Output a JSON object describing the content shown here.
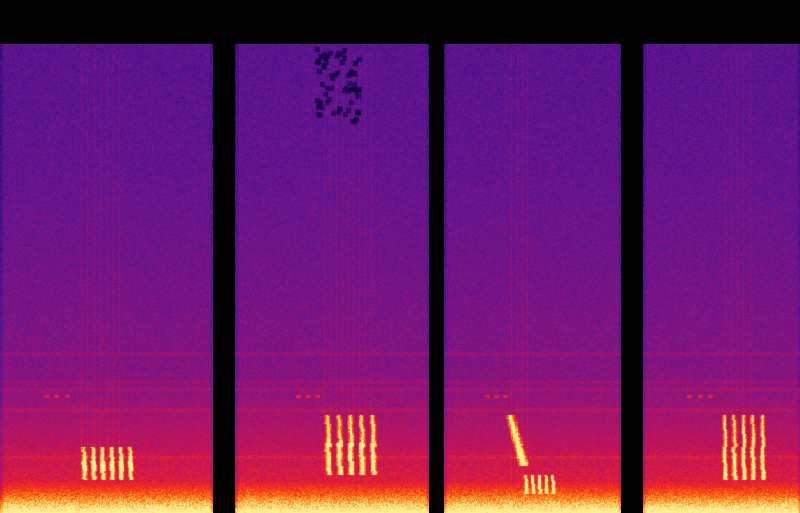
{
  "image": {
    "description_colors": {
      "background": "#000000",
      "low": "#5a1a9a",
      "mid": "#c0146e",
      "high": "#ff3a10",
      "peak": "#ffe27a"
    },
    "panels": [
      {
        "label": "",
        "calls": [
          {
            "t0": 0.38,
            "t1": 0.64,
            "f_low": 0.86,
            "f_high": 0.91,
            "pulses": 6,
            "kind": "stack"
          },
          {
            "t0": 0.38,
            "t1": 0.64,
            "f_low": 0.89,
            "f_high": 0.93,
            "pulses": 6,
            "kind": "stack"
          },
          {
            "t0": 0.19,
            "t1": 0.34,
            "f_low": 0.74,
            "f_high": 0.76,
            "pulses": 3,
            "kind": "dots"
          }
        ],
        "vertical_lines": [
          0.38,
          0.41,
          0.44,
          0.47,
          0.5,
          0.53,
          0.56
        ]
      },
      {
        "label": "",
        "calls": [
          {
            "t0": 0.46,
            "t1": 0.75,
            "f_low": 0.79,
            "f_high": 0.86,
            "pulses": 5,
            "kind": "stack"
          },
          {
            "t0": 0.46,
            "t1": 0.75,
            "f_low": 0.85,
            "f_high": 0.92,
            "pulses": 5,
            "kind": "stack"
          },
          {
            "t0": 0.3,
            "t1": 0.45,
            "f_low": 0.74,
            "f_high": 0.76,
            "pulses": 3,
            "kind": "dots"
          }
        ],
        "vertical_lines": [
          0.46,
          0.49,
          0.52,
          0.55,
          0.58,
          0.61,
          0.64,
          0.67,
          0.7
        ],
        "dark_spots": true
      },
      {
        "label": "",
        "calls": [
          {
            "t0": 0.37,
            "t1": 0.45,
            "f_low": 0.79,
            "f_high": 0.9,
            "pulses": 1,
            "kind": "sweep"
          },
          {
            "t0": 0.45,
            "t1": 0.64,
            "f_low": 0.92,
            "f_high": 0.96,
            "pulses": 5,
            "kind": "stack"
          },
          {
            "t0": 0.22,
            "t1": 0.37,
            "f_low": 0.74,
            "f_high": 0.76,
            "pulses": 3,
            "kind": "dots"
          }
        ],
        "vertical_lines": [
          0.38,
          0.41,
          0.44,
          0.47
        ]
      },
      {
        "label": "",
        "calls": [
          {
            "t0": 0.5,
            "t1": 0.8,
            "f_low": 0.79,
            "f_high": 0.86,
            "pulses": 5,
            "kind": "stack"
          },
          {
            "t0": 0.5,
            "t1": 0.8,
            "f_low": 0.86,
            "f_high": 0.93,
            "pulses": 5,
            "kind": "stack"
          },
          {
            "t0": 0.26,
            "t1": 0.46,
            "f_low": 0.74,
            "f_high": 0.76,
            "pulses": 3,
            "kind": "dots"
          }
        ],
        "vertical_lines": [
          0.52,
          0.56,
          0.6,
          0.64,
          0.68
        ]
      }
    ]
  }
}
